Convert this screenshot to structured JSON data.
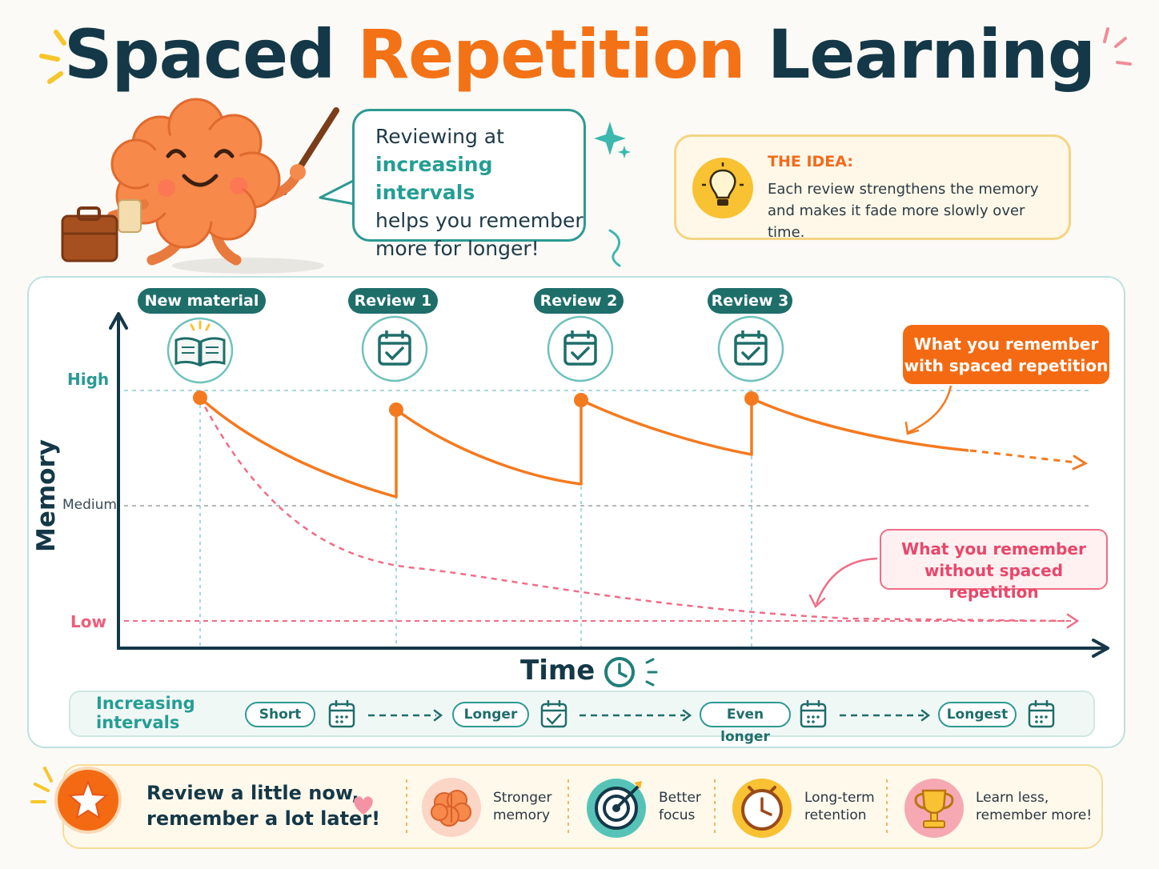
{
  "title": {
    "part1": "Spaced",
    "part2": "Repetition",
    "part3": "Learning"
  },
  "bubble": {
    "line1": "Reviewing at",
    "line2": "increasing intervals",
    "line3": "helps you remember",
    "line4": "more for longer!"
  },
  "idea": {
    "title": "THE IDEA:",
    "text": "Each review strengthens the memory and makes it fade more slowly over time."
  },
  "chart_data": {
    "type": "line",
    "xlabel": "Time",
    "ylabel": "Memory",
    "y_levels": [
      "High",
      "Medium",
      "Low"
    ],
    "events": [
      "New material",
      "Review 1",
      "Review 2",
      "Review 3"
    ],
    "series": [
      {
        "name": "What you remember with spaced repetition",
        "color": "#f47a1f",
        "style": "solid"
      },
      {
        "name": "What you remember without spaced repetition",
        "color": "#ef6d86",
        "style": "dashed"
      }
    ],
    "grid": true
  },
  "callouts": {
    "with": {
      "line1": "What you remember",
      "line2": "with spaced repetition"
    },
    "without": {
      "line1": "What you remember",
      "line2": "without spaced repetition"
    }
  },
  "intervals": {
    "label1": "Increasing",
    "label2": "intervals",
    "steps": [
      "Short",
      "Longer",
      "Even longer",
      "Longest"
    ]
  },
  "banner": {
    "line1": "Review a little now,",
    "line2": "remember a lot later!",
    "benefits": [
      {
        "l1": "Stronger",
        "l2": "memory",
        "icon": "brain-icon"
      },
      {
        "l1": "Better",
        "l2": "focus",
        "icon": "target-icon"
      },
      {
        "l1": "Long-term",
        "l2": "retention",
        "icon": "clock-icon"
      },
      {
        "l1": "Learn less,",
        "l2": "remember more!",
        "icon": "trophy-icon"
      }
    ]
  },
  "colors": {
    "navy": "#143847",
    "orange": "#f47216",
    "teal": "#1f7f7a",
    "pink": "#ef6d86"
  }
}
